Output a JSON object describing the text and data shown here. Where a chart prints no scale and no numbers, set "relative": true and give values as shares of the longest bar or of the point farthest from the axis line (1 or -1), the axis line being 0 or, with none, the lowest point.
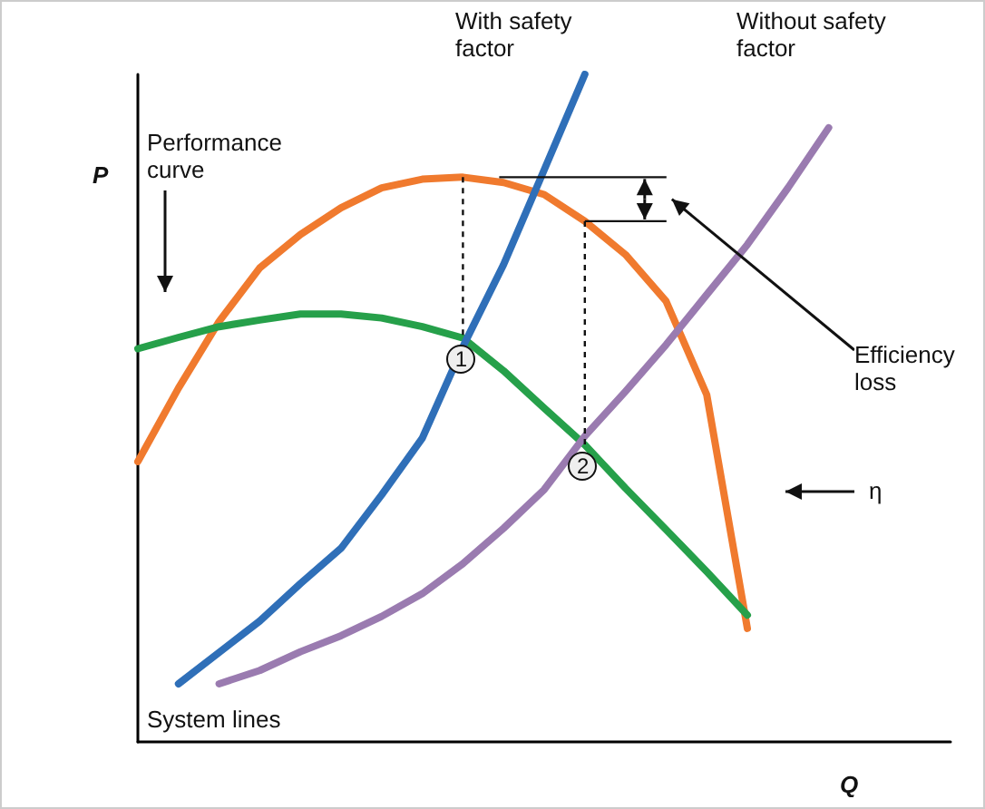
{
  "chart_data": {
    "type": "line",
    "relative": true,
    "xlabel": "Q",
    "ylabel": "P",
    "grid": false,
    "marker": "none",
    "line_style": "solid",
    "categories": [
      null,
      null,
      null,
      null,
      null,
      null,
      null,
      null,
      null,
      null,
      null,
      null,
      null,
      null,
      null,
      null,
      null,
      null,
      null,
      null,
      null
    ],
    "series": [
      {
        "color": "#f07a2e",
        "values": [
          0.42,
          0.53,
          0.63,
          0.71,
          0.76,
          0.8,
          0.83,
          0.843,
          0.846,
          0.838,
          0.82,
          0.78,
          0.73,
          0.66,
          0.52,
          0.17,
          null,
          null,
          null,
          null,
          null
        ]
      },
      {
        "color": "#26a04a",
        "values": [
          0.589,
          0.606,
          0.622,
          0.632,
          0.641,
          0.641,
          0.635,
          0.622,
          0.605,
          0.556,
          0.5,
          0.445,
          0.38,
          0.318,
          0.255,
          0.19,
          null,
          null,
          null,
          null,
          null
        ]
      },
      {
        "color": "#2f6fb8",
        "values": [
          null,
          0.087,
          0.134,
          0.181,
          0.237,
          0.29,
          0.37,
          0.455,
          0.592,
          0.715,
          0.857,
          1,
          null,
          null,
          null,
          null,
          null,
          null,
          null,
          null,
          null
        ]
      },
      {
        "color": "#9a7bb0",
        "values": [
          null,
          null,
          0.087,
          0.107,
          0.135,
          0.159,
          0.188,
          0.222,
          0.267,
          0.32,
          0.378,
          0.458,
          0.525,
          0.595,
          0.67,
          0.745,
          0.83,
          0.92,
          null,
          null,
          null
        ]
      }
    ],
    "annotations": [
      "Performance curve",
      "With safety factor",
      "Without safety factor",
      "Efficiency loss",
      "η",
      "System lines",
      "1",
      "2"
    ]
  }
}
